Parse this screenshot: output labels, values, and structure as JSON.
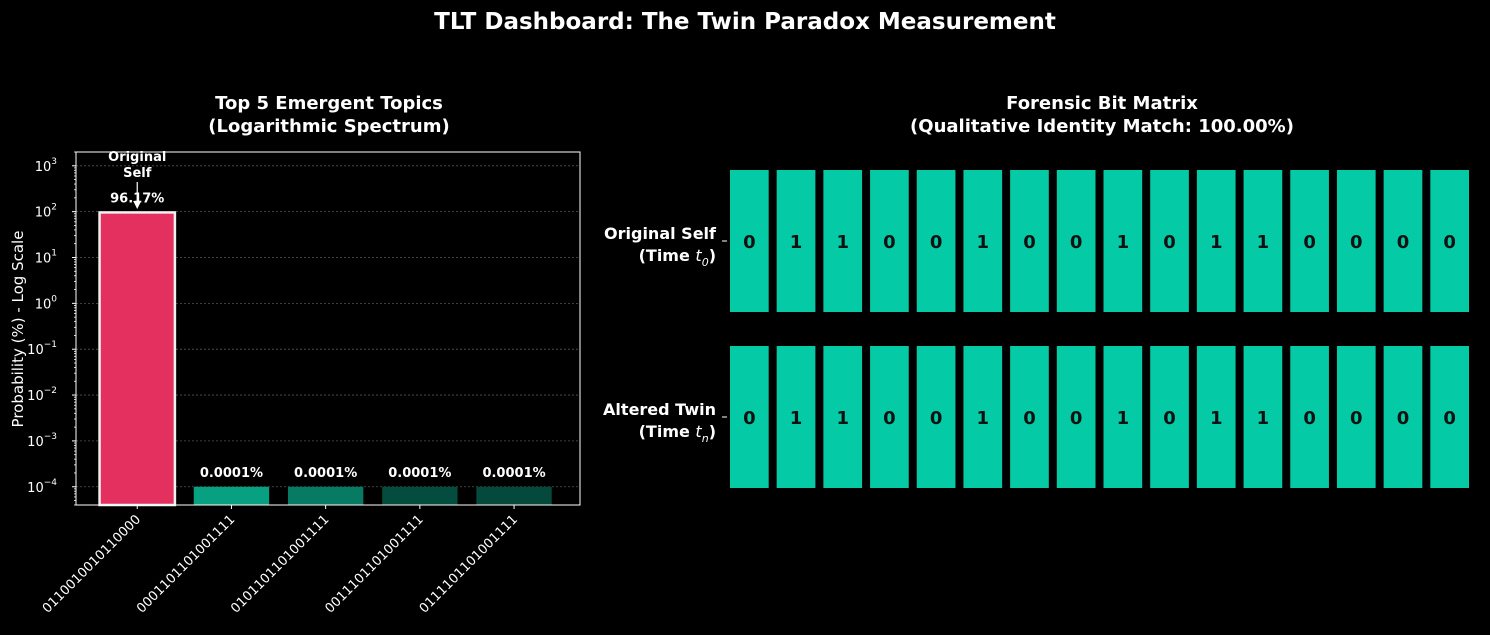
{
  "suptitle": "TLT Dashboard: The Twin Paradox Measurement",
  "chart_data": [
    {
      "type": "bar",
      "title": [
        "Top 5 Emergent Topics",
        "(Logarithmic Spectrum)"
      ],
      "ylabel": "Probability (%) - Log Scale",
      "yscale": "log",
      "ylim": [
        4e-05,
        2000
      ],
      "grid": true,
      "categories": [
        "0110010010110000",
        "0001101101001111",
        "0101101101001111",
        "0011101101001111",
        "0111101101001111"
      ],
      "values": [
        96.17,
        0.0001,
        0.0001,
        0.0001,
        0.0001
      ],
      "value_labels": [
        "96.17%",
        "0.0001%",
        "0.0001%",
        "0.0001%",
        "0.0001%"
      ],
      "colors": [
        "#e3305f",
        "#07a080",
        "#067a62",
        "#044d3e",
        "#04493b"
      ],
      "annotation": "Original\nSelf",
      "annotation_target": "0110010010110000"
    },
    {
      "type": "heatmap",
      "title": [
        "Forensic Bit Matrix",
        "(Qualitative Identity Match: 100.00%)"
      ],
      "rows": [
        {
          "label": "Original Self",
          "sublabel": "(Time ",
          "sub": "0",
          "bits": [
            "0",
            "1",
            "1",
            "0",
            "0",
            "1",
            "0",
            "0",
            "1",
            "0",
            "1",
            "1",
            "0",
            "0",
            "0",
            "0"
          ]
        },
        {
          "label": "Altered Twin",
          "sublabel": "(Time ",
          "sub": "n",
          "bits": [
            "0",
            "1",
            "1",
            "0",
            "0",
            "1",
            "0",
            "0",
            "1",
            "0",
            "1",
            "1",
            "0",
            "0",
            "0",
            "0"
          ]
        }
      ],
      "cell_color": "#04caa5"
    }
  ]
}
